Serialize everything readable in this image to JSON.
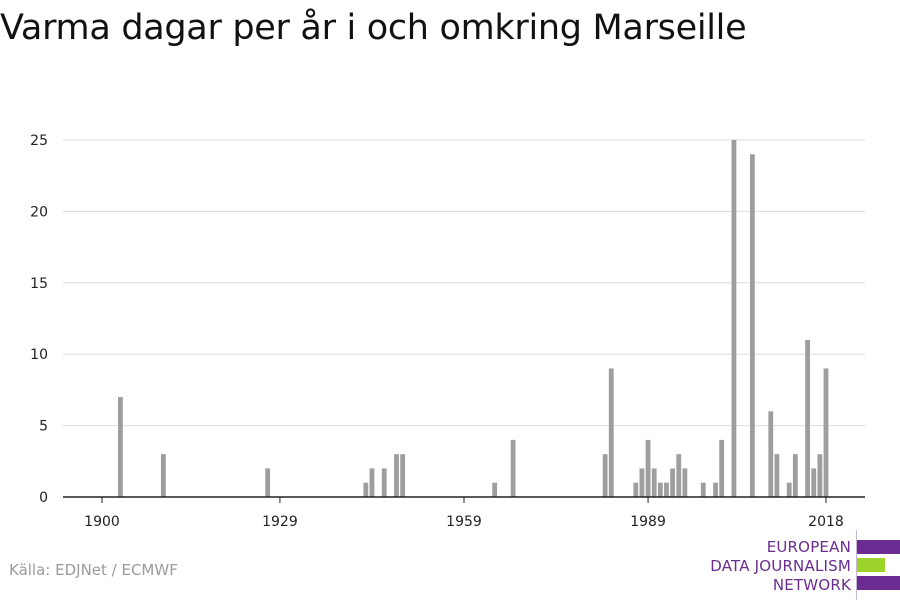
{
  "colors": {
    "bar": "#9e9e9e",
    "grid": "#dddddd",
    "axis": "#222222",
    "logo_purple": "#6b2c91",
    "logo_green": "#9bd32b"
  },
  "chart_data": {
    "type": "bar",
    "title": "Varma dagar per år i och omkring Marseille",
    "xlabel": "",
    "ylabel": "",
    "xlim": [
      1893,
      2025
    ],
    "ylim": [
      0,
      25
    ],
    "x_ticks": [
      1900,
      1929,
      1959,
      1989,
      2018
    ],
    "y_ticks": [
      0,
      5,
      10,
      15,
      20,
      25
    ],
    "grid": "horizontal",
    "series": [
      {
        "x": [
          1903,
          1910,
          1927,
          1943,
          1944,
          1946,
          1948,
          1949,
          1964,
          1967,
          1982,
          1983,
          1987,
          1988,
          1989,
          1990,
          1991,
          1992,
          1993,
          1994,
          1995,
          1998,
          2000,
          2001,
          2003,
          2006,
          2009,
          2010,
          2012,
          2013,
          2015,
          2016,
          2017,
          2018
        ],
        "values": [
          7,
          3,
          2,
          1,
          2,
          2,
          3,
          3,
          1,
          4,
          3,
          9,
          1,
          2,
          4,
          2,
          1,
          1,
          2,
          3,
          2,
          1,
          1,
          4,
          25,
          24,
          6,
          3,
          1,
          3,
          11,
          2,
          3,
          9
        ]
      }
    ]
  },
  "source_text": "Källa: EDJNet / ECMWF",
  "logo": {
    "line1": "EUROPEAN",
    "line2": "DATA JOURNALISM",
    "line3": "NETWORK"
  }
}
